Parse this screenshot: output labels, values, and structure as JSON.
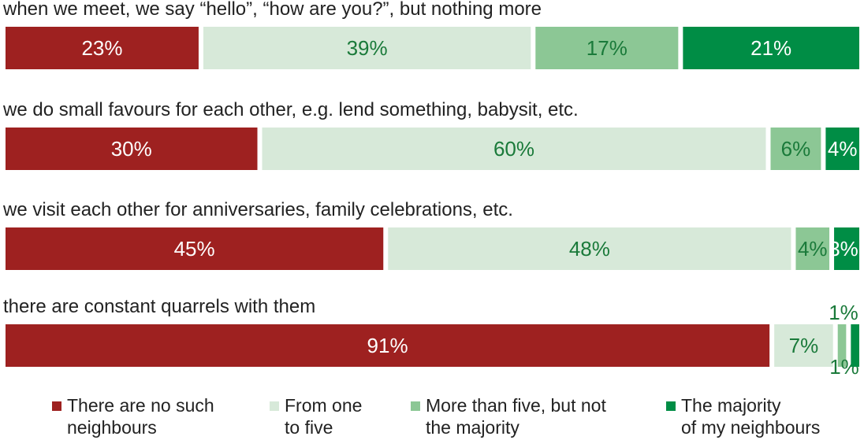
{
  "chart_data": {
    "type": "bar",
    "orientation": "horizontal",
    "stacked": true,
    "unit": "%",
    "categories": [
      "when we meet, we say “hello”, “how are you?”, but nothing more",
      "we do small favours for each other, e.g. lend something, babysit, etc.",
      "we visit each other for anniversaries, family celebrations, etc.",
      "there are constant quarrels with them"
    ],
    "series": [
      {
        "name": "There are no such neighbours",
        "color": "#9e2120",
        "values": [
          23,
          30,
          45,
          91
        ]
      },
      {
        "name": "From one to five",
        "color": "#d7e9d9",
        "values": [
          39,
          60,
          48,
          7
        ]
      },
      {
        "name": "More than five, but not the majority",
        "color": "#8cc795",
        "values": [
          17,
          6,
          4,
          1
        ]
      },
      {
        "name": "The majority of my neighbours",
        "color": "#008d45",
        "values": [
          21,
          4,
          3,
          1
        ]
      }
    ],
    "data_labels": [
      [
        "23%",
        "39%",
        "17%",
        "21%"
      ],
      [
        "30%",
        "60%",
        "6%",
        "4%"
      ],
      [
        "45%",
        "48%",
        "4%",
        "3%"
      ],
      [
        "91%",
        "7%",
        "1%",
        "1%"
      ]
    ],
    "legend_position": "bottom",
    "grid": false
  },
  "legend": [
    {
      "line1": "There are no such",
      "line2": "neighbours",
      "color": "#9e2120"
    },
    {
      "line1": "From one",
      "line2": "to five",
      "color": "#d7e9d9"
    },
    {
      "line1": "More than five, but not",
      "line2": "the majority",
      "color": "#8cc795"
    },
    {
      "line1": "The majority",
      "line2": "of my neighbours",
      "color": "#008d45"
    }
  ]
}
